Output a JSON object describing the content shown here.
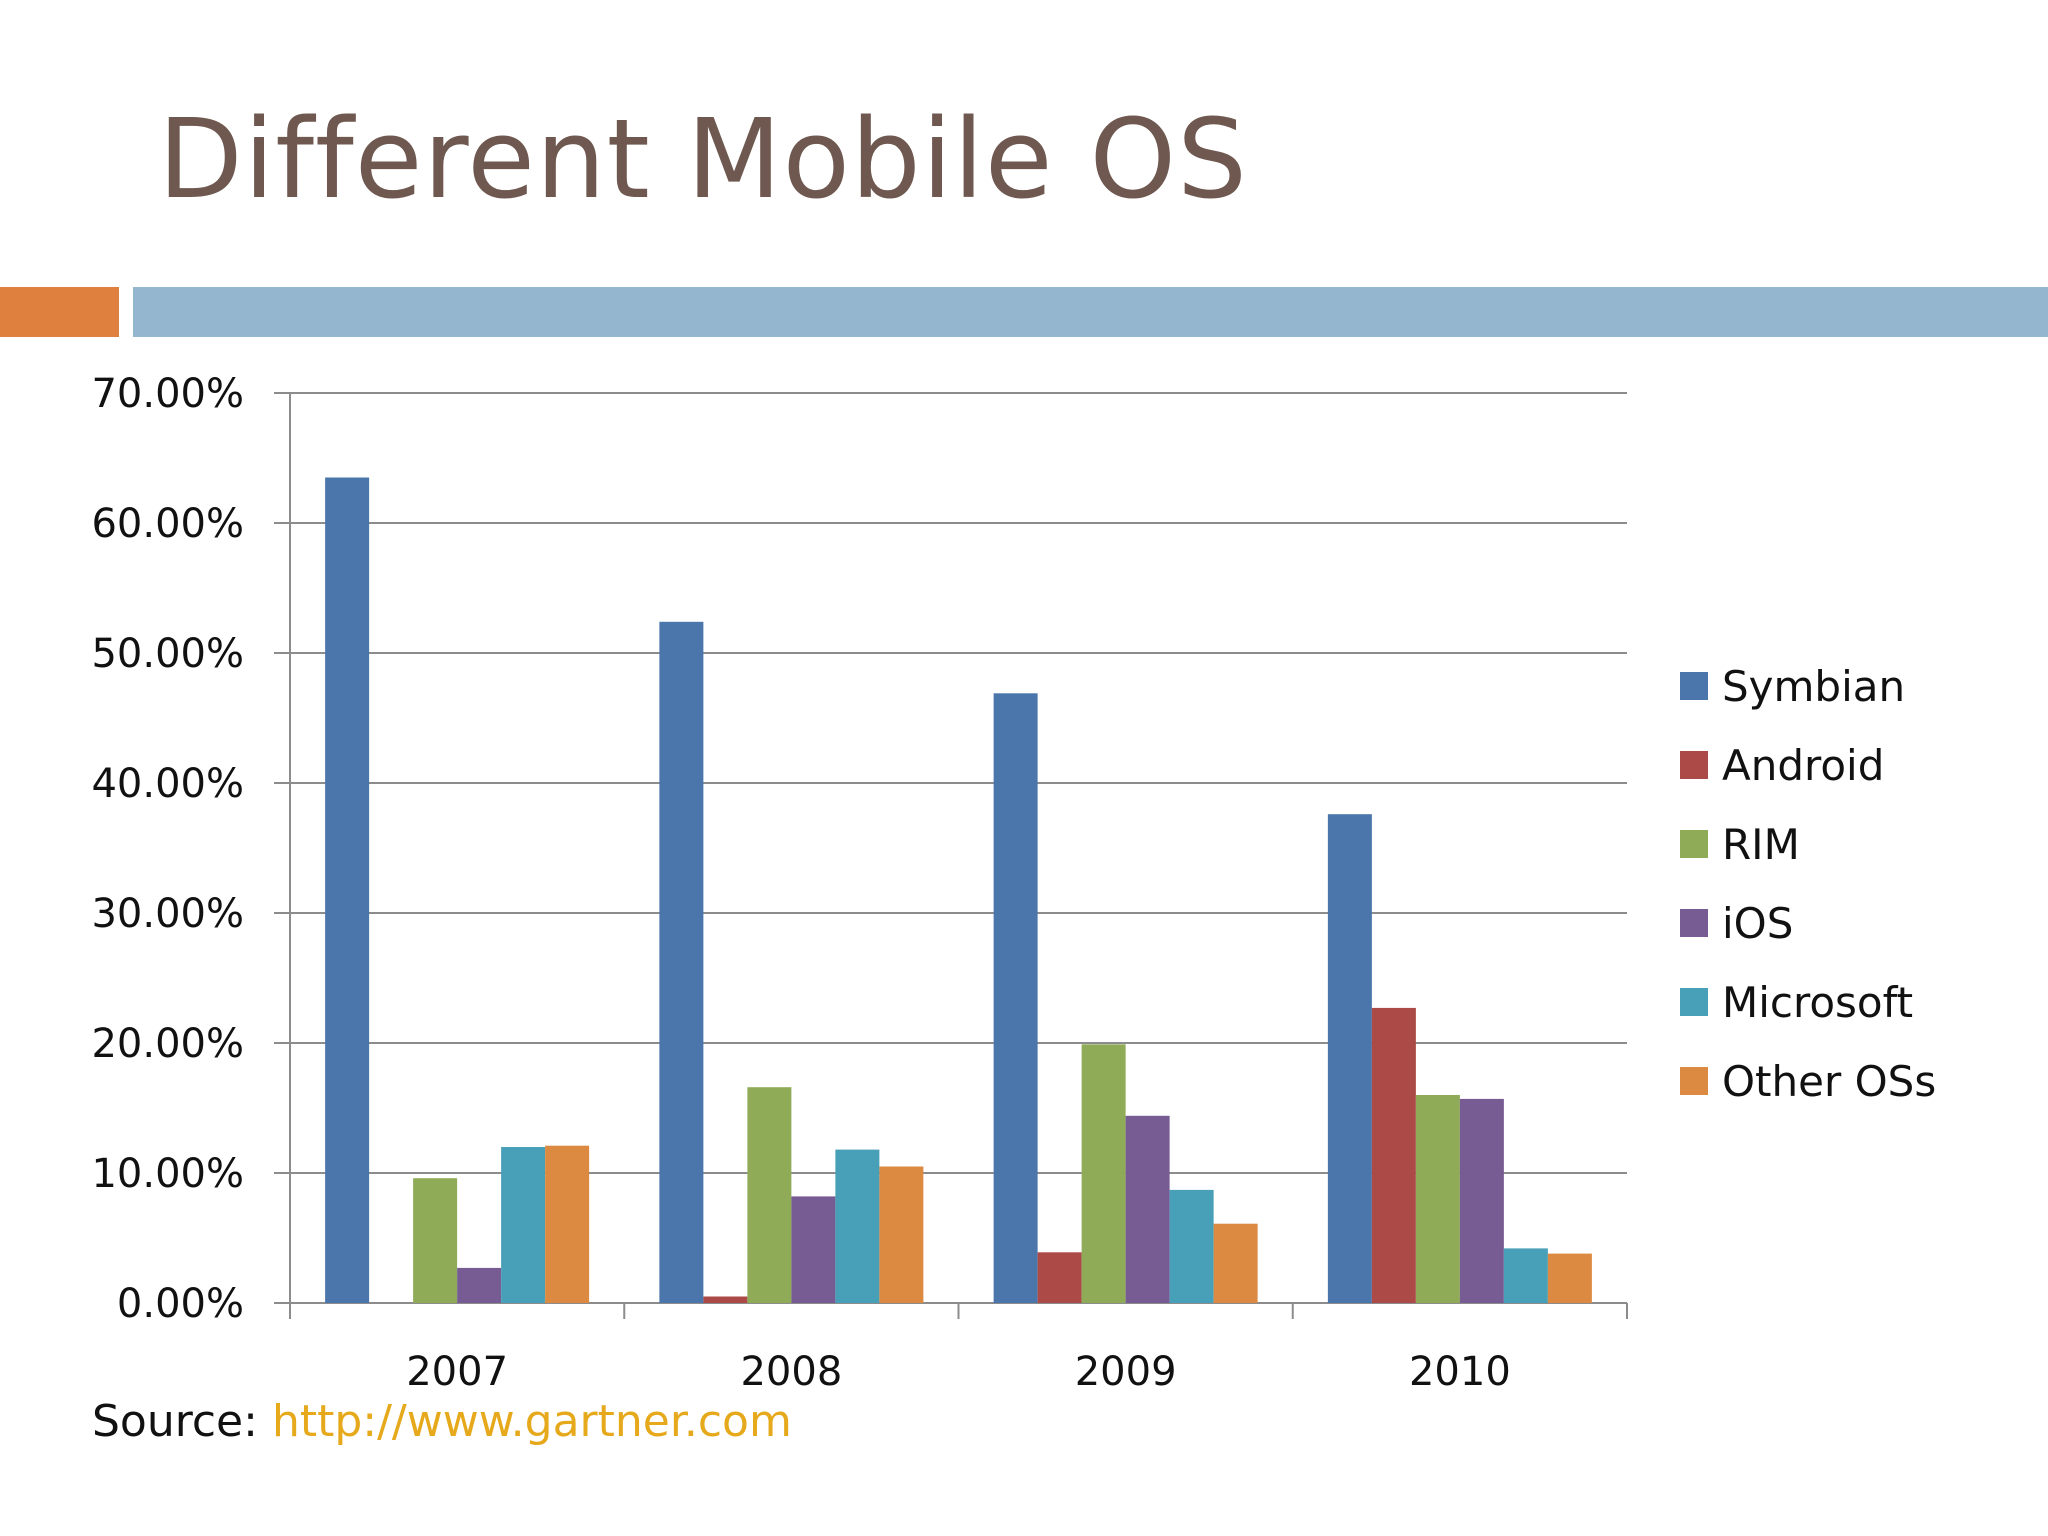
{
  "slide": {
    "title": "Different Mobile OS",
    "source_label": "Source: ",
    "source_link": "http://www.gartner.com"
  },
  "colors": {
    "title": "#6e5850",
    "accent_orange": "#e0803f",
    "accent_blue": "#95b6cf",
    "link": "#e6a91b"
  },
  "chart_data": {
    "type": "bar",
    "categories": [
      "2007",
      "2008",
      "2009",
      "2010"
    ],
    "series": [
      {
        "name": "Symbian",
        "color": "#4a76ab",
        "values": [
          63.5,
          52.4,
          46.9,
          37.6
        ]
      },
      {
        "name": "Android",
        "color": "#ac4a48",
        "values": [
          0.0,
          0.5,
          3.9,
          22.7
        ]
      },
      {
        "name": "RIM",
        "color": "#8fab57",
        "values": [
          9.6,
          16.6,
          19.9,
          16.0
        ]
      },
      {
        "name": "iOS",
        "color": "#775c94",
        "values": [
          2.7,
          8.2,
          14.4,
          15.7
        ]
      },
      {
        "name": "Microsoft",
        "color": "#479fb8",
        "values": [
          12.0,
          11.8,
          8.7,
          4.2
        ]
      },
      {
        "name": "Other OSs",
        "color": "#dc8a42",
        "values": [
          12.1,
          10.5,
          6.1,
          3.8
        ]
      }
    ],
    "ylim": [
      0,
      70
    ],
    "yticks": [
      "0.00%",
      "10.00%",
      "20.00%",
      "30.00%",
      "40.00%",
      "50.00%",
      "60.00%",
      "70.00%"
    ],
    "xlabel": "",
    "ylabel": "",
    "grid": true,
    "legend": "right"
  }
}
